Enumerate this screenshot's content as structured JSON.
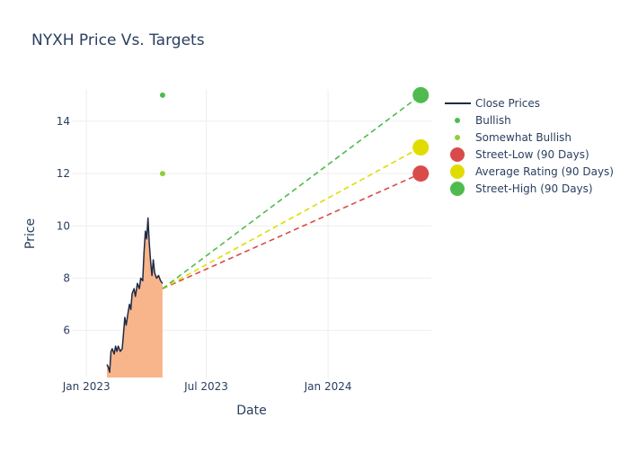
{
  "chart_data": {
    "type": "line",
    "title": "NYXH Price Vs. Targets",
    "xlabel": "Date",
    "ylabel": "Price",
    "xlim": [
      "2022-12-10",
      "2024-06-05"
    ],
    "ylim": [
      4.2,
      15.2
    ],
    "grid": true,
    "legend_position": "right",
    "x_ticks": [
      {
        "date": "2023-01-01",
        "label": "Jan 2023"
      },
      {
        "date": "2023-07-01",
        "label": "Jul 2023"
      },
      {
        "date": "2024-01-01",
        "label": "Jan 2024"
      }
    ],
    "y_ticks": [
      {
        "value": 6,
        "label": "6"
      },
      {
        "value": 8,
        "label": "8"
      },
      {
        "value": 10,
        "label": "10"
      },
      {
        "value": 12,
        "label": "12"
      },
      {
        "value": 14,
        "label": "14"
      }
    ],
    "close_prices": {
      "name": "Close Prices",
      "color": "#1f2a44",
      "fill_color": "#f8b48a",
      "points": [
        [
          "2023-02-01",
          4.7
        ],
        [
          "2023-02-03",
          4.6
        ],
        [
          "2023-02-05",
          4.4
        ],
        [
          "2023-02-07",
          5.2
        ],
        [
          "2023-02-09",
          5.3
        ],
        [
          "2023-02-12",
          5.1
        ],
        [
          "2023-02-14",
          5.4
        ],
        [
          "2023-02-16",
          5.2
        ],
        [
          "2023-02-18",
          5.4
        ],
        [
          "2023-02-21",
          5.2
        ],
        [
          "2023-02-24",
          5.3
        ],
        [
          "2023-02-26",
          5.9
        ],
        [
          "2023-02-28",
          6.5
        ],
        [
          "2023-03-02",
          6.2
        ],
        [
          "2023-03-05",
          6.7
        ],
        [
          "2023-03-07",
          7.0
        ],
        [
          "2023-03-09",
          6.8
        ],
        [
          "2023-03-11",
          7.4
        ],
        [
          "2023-03-14",
          7.6
        ],
        [
          "2023-03-16",
          7.3
        ],
        [
          "2023-03-19",
          7.8
        ],
        [
          "2023-03-22",
          7.6
        ],
        [
          "2023-03-24",
          8.0
        ],
        [
          "2023-03-27",
          7.9
        ],
        [
          "2023-03-29",
          9.0
        ],
        [
          "2023-03-31",
          9.8
        ],
        [
          "2023-04-02",
          9.5
        ],
        [
          "2023-04-04",
          10.3
        ],
        [
          "2023-04-06",
          9.3
        ],
        [
          "2023-04-08",
          8.6
        ],
        [
          "2023-04-10",
          8.1
        ],
        [
          "2023-04-12",
          8.7
        ],
        [
          "2023-04-14",
          8.2
        ],
        [
          "2023-04-17",
          8.0
        ],
        [
          "2023-04-20",
          8.1
        ],
        [
          "2023-04-23",
          7.9
        ],
        [
          "2023-04-26",
          7.8
        ]
      ]
    },
    "analyst_ratings": [
      {
        "name": "Bullish",
        "color": "#4fbb4f",
        "date": "2023-04-26",
        "value": 15.0
      },
      {
        "name": "Somewhat Bullish",
        "color": "#8fcf3a",
        "date": "2023-04-26",
        "value": 12.0
      }
    ],
    "targets": {
      "start_date": "2023-04-26",
      "start_value": 7.6,
      "end_date": "2024-05-20",
      "series": [
        {
          "name": "Street-Low (90 Days)",
          "value": 12.0,
          "color": "#d94b4b"
        },
        {
          "name": "Average Rating (90 Days)",
          "value": 13.0,
          "color": "#e0dc00"
        },
        {
          "name": "Street-High (90 Days)",
          "value": 15.0,
          "color": "#4fbb4f"
        }
      ]
    }
  }
}
